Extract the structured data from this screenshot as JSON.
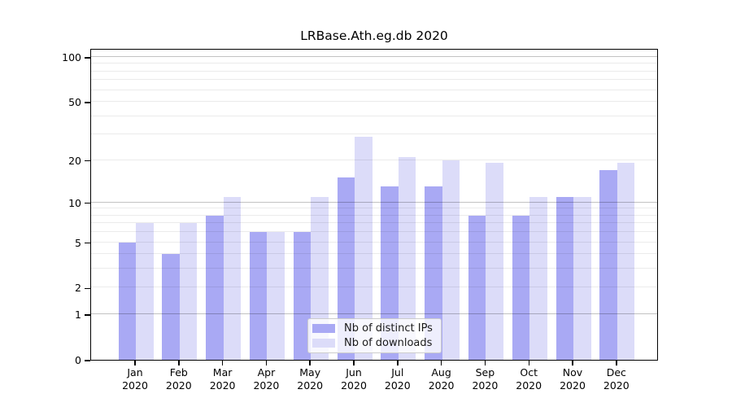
{
  "figure": {
    "title": "LRBase.Ath.eg.db 2020"
  },
  "chart_data": {
    "type": "bar",
    "title": "LRBase.Ath.eg.db 2020",
    "categories": [
      "Jan 2020",
      "Feb 2020",
      "Mar 2020",
      "Apr 2020",
      "May 2020",
      "Jun 2020",
      "Jul 2020",
      "Aug 2020",
      "Sep 2020",
      "Oct 2020",
      "Nov 2020",
      "Dec 2020"
    ],
    "series": [
      {
        "name": "Nb of distinct IPs",
        "color": "#a9a9f4",
        "values": [
          5,
          4,
          8,
          6,
          6,
          15,
          13,
          13,
          8,
          8,
          11,
          17
        ]
      },
      {
        "name": "Nb of downloads",
        "color": "#dcdcf9",
        "values": [
          7,
          7,
          11,
          6,
          11,
          29,
          21,
          20,
          19,
          11,
          11,
          19
        ]
      }
    ],
    "xlabel": "",
    "ylabel": "",
    "yscale": "log1p",
    "ylim": [
      0,
      115
    ],
    "y_ticks": [
      0,
      1,
      2,
      5,
      10,
      20,
      50,
      100
    ],
    "major_gridlines": [
      1,
      10,
      100
    ],
    "minor_gridlines": [
      2,
      3,
      4,
      5,
      6,
      7,
      8,
      9,
      20,
      30,
      40,
      50,
      60,
      70,
      80,
      90
    ],
    "grid": true,
    "legend_position": "lower center"
  }
}
